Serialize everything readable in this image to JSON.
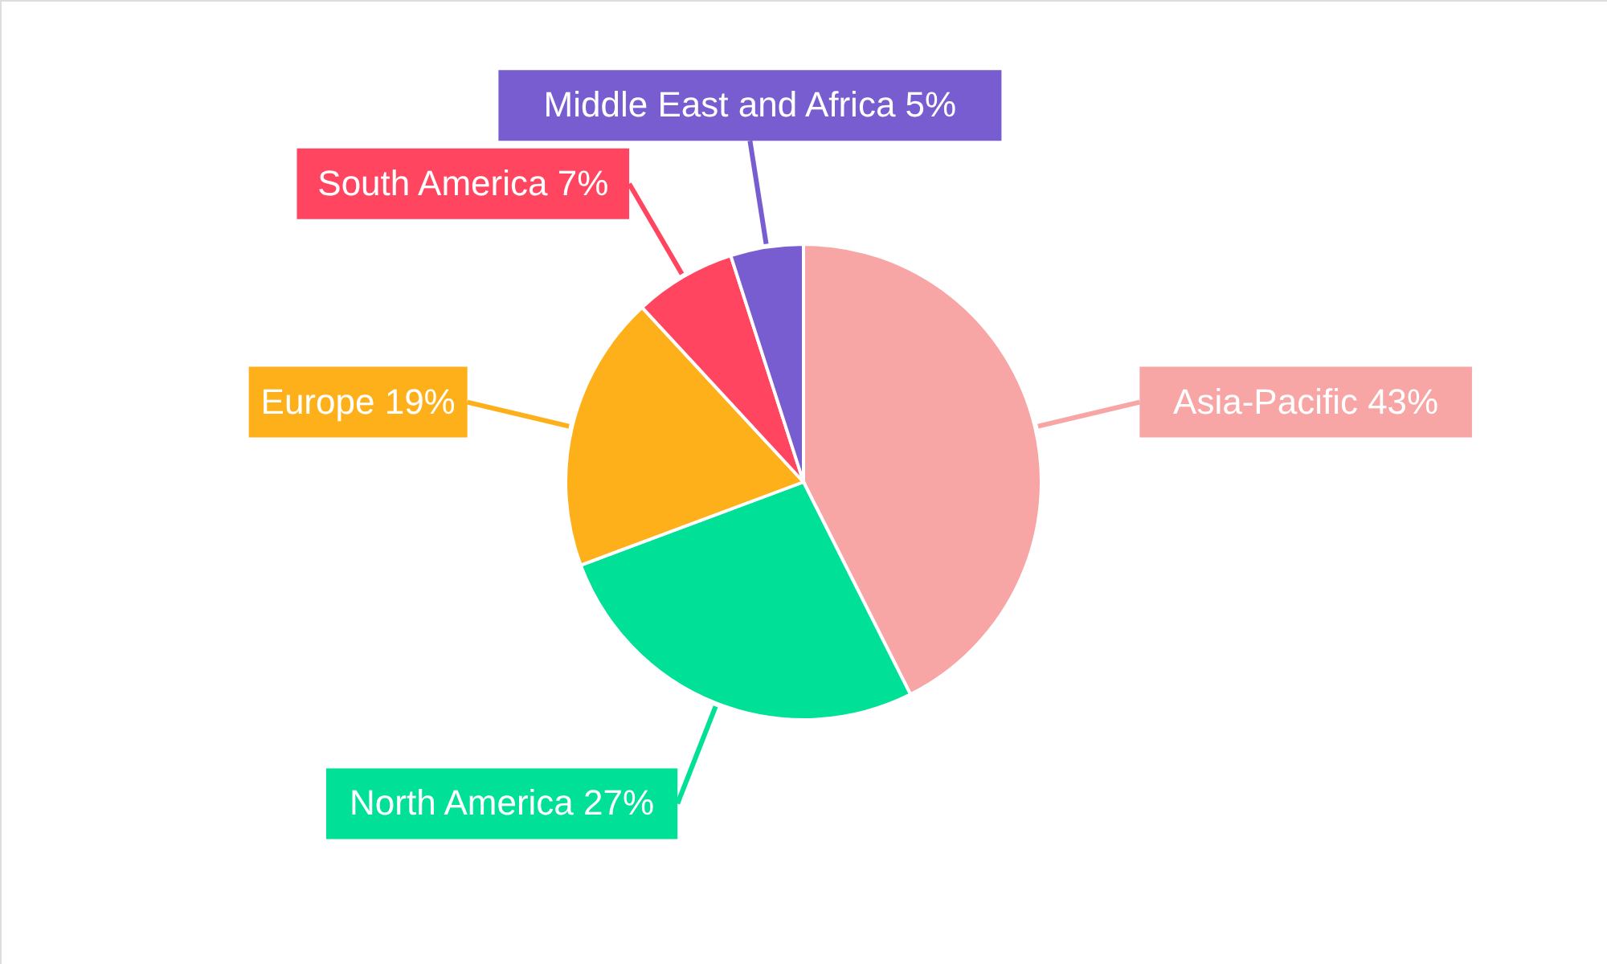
{
  "chart_data": {
    "type": "pie",
    "categories": [
      "Asia-Pacific",
      "North America",
      "Europe",
      "South America",
      "Middle East and Africa"
    ],
    "values": [
      43,
      27,
      19,
      7,
      5
    ],
    "value_labels": [
      "43%",
      "27%",
      "19%",
      "7%",
      "5%"
    ],
    "colors": [
      "#f8a5a5",
      "#00e096",
      "#feb01a",
      "#ff4560",
      "#775dd0"
    ]
  }
}
